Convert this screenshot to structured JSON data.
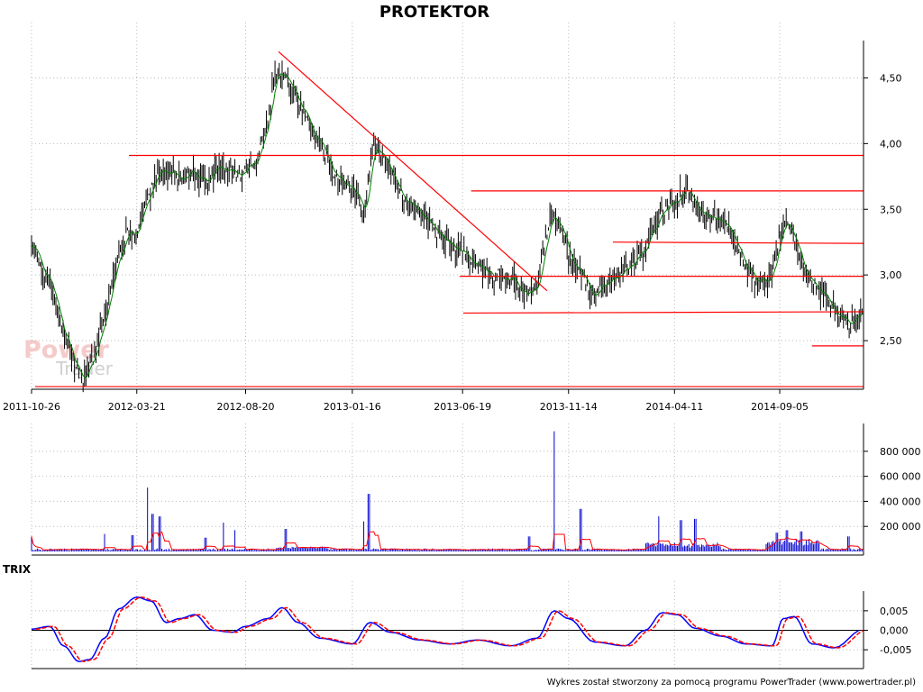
{
  "footer": "Wykres został stworzony za pomocą programu PowerTrader (www.powertrader.pl)",
  "watermark": {
    "line1": "Power",
    "line2": "Trader"
  },
  "colors": {
    "price": "#000000",
    "ma": "#008000",
    "trend": "#ff0000",
    "grid": "#bbbbbb",
    "volume": "#0000cc",
    "volume_ma": "#ff0000",
    "trix": "#0000ff",
    "signal": "#ff0000",
    "watermark": "#f2a0a0"
  },
  "chart_data": [
    {
      "type": "candlestick",
      "title": "PROTEKTOR",
      "x_ticks": [
        "2011-10-26",
        "2012-03-21",
        "2012-08-20",
        "2013-01-16",
        "2013-06-19",
        "2013-11-14",
        "2014-04-11",
        "2014-09-05"
      ],
      "date_range": [
        "2011-10-26",
        "2014-12-31"
      ],
      "y_ticks": [
        "4,50",
        "4,00",
        "3,50",
        "3,00",
        "2,50"
      ],
      "ylim": [
        2.13,
        4.75
      ],
      "grid": true,
      "close_keypoints": [
        {
          "x": "2011-10-26",
          "y": 3.22
        },
        {
          "x": "2011-11-10",
          "y": 3.05
        },
        {
          "x": "2011-11-25",
          "y": 2.88
        },
        {
          "x": "2011-12-05",
          "y": 2.62
        },
        {
          "x": "2011-12-20",
          "y": 2.4
        },
        {
          "x": "2012-01-05",
          "y": 2.2
        },
        {
          "x": "2012-01-20",
          "y": 2.35
        },
        {
          "x": "2012-02-05",
          "y": 2.7
        },
        {
          "x": "2012-02-20",
          "y": 3.05
        },
        {
          "x": "2012-03-05",
          "y": 3.3
        },
        {
          "x": "2012-03-21",
          "y": 3.35
        },
        {
          "x": "2012-04-05",
          "y": 3.6
        },
        {
          "x": "2012-04-20",
          "y": 3.78
        },
        {
          "x": "2012-05-05",
          "y": 3.8
        },
        {
          "x": "2012-05-20",
          "y": 3.72
        },
        {
          "x": "2012-06-05",
          "y": 3.78
        },
        {
          "x": "2012-06-25",
          "y": 3.72
        },
        {
          "x": "2012-07-10",
          "y": 3.8
        },
        {
          "x": "2012-07-25",
          "y": 3.82
        },
        {
          "x": "2012-08-10",
          "y": 3.75
        },
        {
          "x": "2012-08-20",
          "y": 3.8
        },
        {
          "x": "2012-09-05",
          "y": 3.9
        },
        {
          "x": "2012-09-20",
          "y": 4.2
        },
        {
          "x": "2012-10-01",
          "y": 4.55
        },
        {
          "x": "2012-10-15",
          "y": 4.5
        },
        {
          "x": "2012-10-30",
          "y": 4.35
        },
        {
          "x": "2012-11-15",
          "y": 4.15
        },
        {
          "x": "2012-12-01",
          "y": 4.0
        },
        {
          "x": "2012-12-20",
          "y": 3.8
        },
        {
          "x": "2013-01-16",
          "y": 3.65
        },
        {
          "x": "2013-02-01",
          "y": 3.5
        },
        {
          "x": "2013-02-15",
          "y": 4.0
        },
        {
          "x": "2013-03-05",
          "y": 3.85
        },
        {
          "x": "2013-03-25",
          "y": 3.6
        },
        {
          "x": "2013-04-10",
          "y": 3.55
        },
        {
          "x": "2013-05-01",
          "y": 3.4
        },
        {
          "x": "2013-05-25",
          "y": 3.25
        },
        {
          "x": "2013-06-19",
          "y": 3.18
        },
        {
          "x": "2013-07-10",
          "y": 3.05
        },
        {
          "x": "2013-08-01",
          "y": 3.0
        },
        {
          "x": "2013-08-25",
          "y": 2.98
        },
        {
          "x": "2013-09-15",
          "y": 2.85
        },
        {
          "x": "2013-10-01",
          "y": 2.9
        },
        {
          "x": "2013-10-10",
          "y": 3.2
        },
        {
          "x": "2013-10-20",
          "y": 3.45
        },
        {
          "x": "2013-11-05",
          "y": 3.35
        },
        {
          "x": "2013-11-14",
          "y": 3.15
        },
        {
          "x": "2013-12-05",
          "y": 2.95
        },
        {
          "x": "2013-12-20",
          "y": 2.85
        },
        {
          "x": "2014-01-10",
          "y": 2.95
        },
        {
          "x": "2014-02-05",
          "y": 3.05
        },
        {
          "x": "2014-03-01",
          "y": 3.2
        },
        {
          "x": "2014-03-20",
          "y": 3.45
        },
        {
          "x": "2014-04-11",
          "y": 3.55
        },
        {
          "x": "2014-04-25",
          "y": 3.65
        },
        {
          "x": "2014-05-15",
          "y": 3.5
        },
        {
          "x": "2014-06-05",
          "y": 3.45
        },
        {
          "x": "2014-06-25",
          "y": 3.35
        },
        {
          "x": "2014-07-15",
          "y": 3.1
        },
        {
          "x": "2014-08-05",
          "y": 2.95
        },
        {
          "x": "2014-08-25",
          "y": 2.98
        },
        {
          "x": "2014-09-05",
          "y": 3.3
        },
        {
          "x": "2014-09-15",
          "y": 3.4
        },
        {
          "x": "2014-09-25",
          "y": 3.25
        },
        {
          "x": "2014-10-10",
          "y": 3.0
        },
        {
          "x": "2014-11-05",
          "y": 2.85
        },
        {
          "x": "2014-11-25",
          "y": 2.7
        },
        {
          "x": "2014-12-10",
          "y": 2.62
        },
        {
          "x": "2014-12-31",
          "y": 2.72
        }
      ],
      "trend_lines": [
        {
          "x1": "2011-10-31",
          "y1": 2.15,
          "x2": "2014-12-31",
          "y2": 2.15
        },
        {
          "x1": "2012-03-10",
          "y1": 3.91,
          "x2": "2014-12-31",
          "y2": 3.91
        },
        {
          "x1": "2013-07-01",
          "y1": 3.64,
          "x2": "2014-12-31",
          "y2": 3.64
        },
        {
          "x1": "2014-01-15",
          "y1": 3.25,
          "x2": "2014-12-31",
          "y2": 3.24
        },
        {
          "x1": "2013-06-15",
          "y1": 2.99,
          "x2": "2014-12-31",
          "y2": 2.99
        },
        {
          "x1": "2013-06-20",
          "y1": 2.71,
          "x2": "2014-12-31",
          "y2": 2.72
        },
        {
          "x1": "2014-10-20",
          "y1": 2.46,
          "x2": "2014-12-31",
          "y2": 2.46
        },
        {
          "x1": "2012-10-05",
          "y1": 4.7,
          "x2": "2013-10-15",
          "y2": 2.88
        }
      ]
    },
    {
      "type": "bar",
      "title": "",
      "y_ticks": [
        "800 000",
        "600 000",
        "400 000",
        "200 000"
      ],
      "ylim": [
        0,
        950000
      ],
      "spikes": [
        {
          "x": "2011-10-26",
          "y": 120000
        },
        {
          "x": "2012-02-05",
          "y": 140000
        },
        {
          "x": "2012-03-15",
          "y": 130000
        },
        {
          "x": "2012-04-05",
          "y": 510000
        },
        {
          "x": "2012-04-12",
          "y": 300000
        },
        {
          "x": "2012-04-22",
          "y": 280000
        },
        {
          "x": "2012-06-25",
          "y": 110000
        },
        {
          "x": "2012-07-20",
          "y": 230000
        },
        {
          "x": "2012-08-05",
          "y": 170000
        },
        {
          "x": "2012-10-15",
          "y": 180000
        },
        {
          "x": "2013-02-01",
          "y": 240000
        },
        {
          "x": "2013-02-08",
          "y": 460000
        },
        {
          "x": "2013-09-20",
          "y": 120000
        },
        {
          "x": "2013-10-25",
          "y": 960000
        },
        {
          "x": "2013-12-01",
          "y": 340000
        },
        {
          "x": "2014-03-20",
          "y": 280000
        },
        {
          "x": "2014-04-20",
          "y": 250000
        },
        {
          "x": "2014-05-10",
          "y": 260000
        },
        {
          "x": "2014-09-01",
          "y": 150000
        },
        {
          "x": "2014-09-15",
          "y": 170000
        },
        {
          "x": "2014-10-05",
          "y": 160000
        },
        {
          "x": "2014-12-10",
          "y": 120000
        }
      ]
    },
    {
      "type": "line",
      "title": "TRIX",
      "y_ticks": [
        "0,005",
        "0,000",
        "-0,005"
      ],
      "ylim": [
        -0.0082,
        0.0082
      ],
      "series": [
        {
          "points": [
            {
              "x": "2011-10-26",
              "y": 0.0003
            },
            {
              "x": "2011-11-20",
              "y": 0.001
            },
            {
              "x": "2011-12-10",
              "y": -0.004
            },
            {
              "x": "2011-12-31",
              "y": -0.008
            },
            {
              "x": "2012-01-15",
              "y": -0.0075
            },
            {
              "x": "2012-02-05",
              "y": -0.002
            },
            {
              "x": "2012-02-25",
              "y": 0.0055
            },
            {
              "x": "2012-03-21",
              "y": 0.0085
            },
            {
              "x": "2012-04-10",
              "y": 0.0075
            },
            {
              "x": "2012-05-01",
              "y": 0.002
            },
            {
              "x": "2012-05-20",
              "y": 0.003
            },
            {
              "x": "2012-06-10",
              "y": 0.004
            },
            {
              "x": "2012-07-05",
              "y": 0.0
            },
            {
              "x": "2012-08-01",
              "y": -0.0005
            },
            {
              "x": "2012-08-20",
              "y": 0.001
            },
            {
              "x": "2012-09-20",
              "y": 0.003
            },
            {
              "x": "2012-10-10",
              "y": 0.0058
            },
            {
              "x": "2012-11-01",
              "y": 0.002
            },
            {
              "x": "2012-12-01",
              "y": -0.002
            },
            {
              "x": "2013-01-16",
              "y": -0.0035
            },
            {
              "x": "2013-02-10",
              "y": 0.002
            },
            {
              "x": "2013-03-10",
              "y": -0.0005
            },
            {
              "x": "2013-04-20",
              "y": -0.0025
            },
            {
              "x": "2013-06-01",
              "y": -0.0035
            },
            {
              "x": "2013-07-10",
              "y": -0.0025
            },
            {
              "x": "2013-08-25",
              "y": -0.004
            },
            {
              "x": "2013-10-01",
              "y": -0.002
            },
            {
              "x": "2013-10-25",
              "y": 0.005
            },
            {
              "x": "2013-11-14",
              "y": 0.003
            },
            {
              "x": "2013-12-20",
              "y": -0.003
            },
            {
              "x": "2014-02-01",
              "y": -0.004
            },
            {
              "x": "2014-03-01",
              "y": 0.0
            },
            {
              "x": "2014-03-25",
              "y": 0.0045
            },
            {
              "x": "2014-04-15",
              "y": 0.004
            },
            {
              "x": "2014-05-10",
              "y": 0.0005
            },
            {
              "x": "2014-06-15",
              "y": -0.0015
            },
            {
              "x": "2014-07-20",
              "y": -0.0035
            },
            {
              "x": "2014-08-25",
              "y": -0.004
            },
            {
              "x": "2014-09-10",
              "y": 0.003
            },
            {
              "x": "2014-09-25",
              "y": 0.0035
            },
            {
              "x": "2014-10-20",
              "y": -0.0035
            },
            {
              "x": "2014-11-20",
              "y": -0.0045
            },
            {
              "x": "2014-12-31",
              "y": 0.0003
            }
          ]
        },
        {
          "offset_days": 6
        }
      ]
    }
  ]
}
